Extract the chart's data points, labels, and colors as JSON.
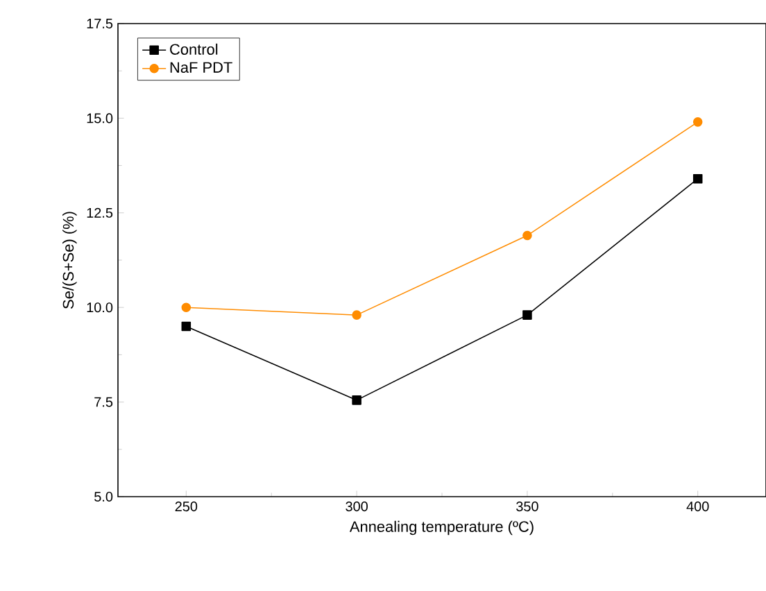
{
  "chart_data": {
    "type": "line",
    "xlabel": "Annealing temperature (ºC)",
    "ylabel": "Se/(S+Se) (%)",
    "x": [
      250,
      300,
      350,
      400
    ],
    "series": [
      {
        "name": "Control",
        "color": "#000000",
        "marker": "square",
        "values": [
          9.5,
          7.55,
          9.8,
          13.4
        ]
      },
      {
        "name": "NaF PDT",
        "color": "#ff8c00",
        "marker": "circle",
        "values": [
          10.0,
          9.8,
          11.9,
          14.9
        ]
      }
    ],
    "xlim": [
      230,
      420
    ],
    "xticks": [
      250,
      300,
      350,
      400
    ],
    "ylim": [
      5.0,
      17.5
    ],
    "yticks": [
      {
        "value": 5.0,
        "label": "5.0"
      },
      {
        "value": 7.5,
        "label": "7.5"
      },
      {
        "value": 10.0,
        "label": "10.0"
      },
      {
        "value": 12.5,
        "label": "12.5"
      },
      {
        "value": 15.0,
        "label": "15.0"
      },
      {
        "value": 17.5,
        "label": "17.5"
      }
    ],
    "legend": "top left",
    "grid": false,
    "line_style": "solid"
  }
}
